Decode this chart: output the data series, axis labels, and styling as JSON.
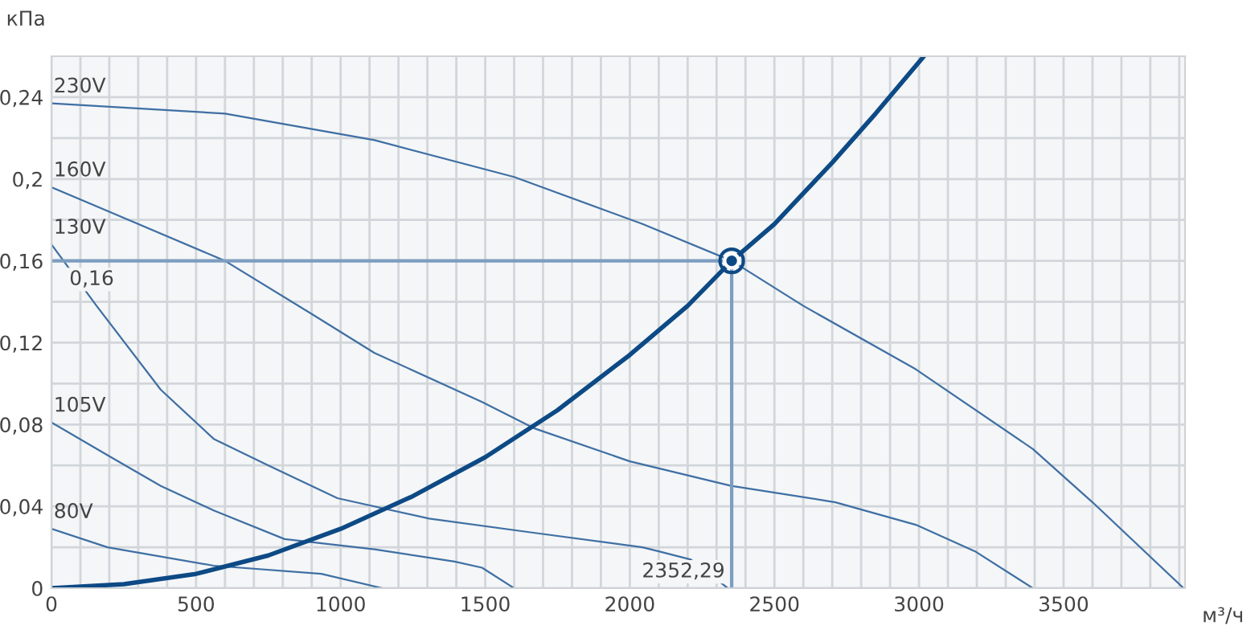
{
  "chart_data": {
    "type": "line",
    "xlabel": "м³/ч",
    "ylabel": "кПа",
    "xlim": [
      0,
      3920
    ],
    "ylim": [
      0,
      0.26
    ],
    "xticks": [
      0,
      {
        "value": 100,
        "label": null
      },
      {
        "value": 200,
        "label": null
      },
      {
        "value": 300,
        "label": null
      },
      {
        "value": 400,
        "label": null
      },
      500,
      {
        "value": 600,
        "label": null
      },
      {
        "value": 700,
        "label": null
      },
      {
        "value": 800,
        "label": null
      },
      {
        "value": 900,
        "label": null
      },
      1000,
      {
        "value": 1100,
        "label": null
      },
      {
        "value": 1200,
        "label": null
      },
      {
        "value": 1300,
        "label": null
      },
      {
        "value": 1400,
        "label": null
      },
      1500,
      {
        "value": 1600,
        "label": null
      },
      {
        "value": 1700,
        "label": null
      },
      {
        "value": 1800,
        "label": null
      },
      {
        "value": 1900,
        "label": null
      },
      2000,
      {
        "value": 2100,
        "label": null
      },
      {
        "value": 2200,
        "label": null
      },
      {
        "value": 2300,
        "label": null
      },
      {
        "value": 2400,
        "label": null
      },
      2500,
      {
        "value": 2600,
        "label": null
      },
      {
        "value": 2700,
        "label": null
      },
      {
        "value": 2800,
        "label": null
      },
      {
        "value": 2900,
        "label": null
      },
      3000,
      {
        "value": 3100,
        "label": null
      },
      {
        "value": 3200,
        "label": null
      },
      {
        "value": 3300,
        "label": null
      },
      {
        "value": 3400,
        "label": null
      },
      3500,
      {
        "value": 3600,
        "label": null
      },
      {
        "value": 3700,
        "label": null
      },
      {
        "value": 3800,
        "label": null
      },
      {
        "value": 3900,
        "label": null
      }
    ],
    "yticks": [
      0,
      {
        "value": 0.02,
        "label": null
      },
      {
        "value": 0.04,
        "label": "0,04"
      },
      {
        "value": 0.06,
        "label": null
      },
      {
        "value": 0.08,
        "label": "0,08"
      },
      {
        "value": 0.1,
        "label": null
      },
      {
        "value": 0.12,
        "label": "0,12"
      },
      {
        "value": 0.14,
        "label": null
      },
      {
        "value": 0.16,
        "label": "0,16"
      },
      {
        "value": 0.18,
        "label": null
      },
      {
        "value": 0.2,
        "label": "0,2"
      },
      {
        "value": 0.22,
        "label": null
      },
      {
        "value": 0.24,
        "label": "0,24"
      }
    ],
    "grid": true,
    "legend": false,
    "line_style": "solid",
    "series": [
      {
        "name": "230V",
        "color": "#3f6fa3",
        "x": [
          0,
          600,
          1117,
          1600,
          2044,
          2352.29,
          2600,
          2989,
          3394,
          3600,
          3915
        ],
        "values": [
          0.237,
          0.232,
          0.219,
          0.201,
          0.178,
          0.16,
          0.138,
          0.107,
          0.068,
          0.042,
          0
        ]
      },
      {
        "name": "160V",
        "color": "#3f6fa3",
        "x": [
          0,
          200,
          600,
          900,
          1117,
          1489,
          1672,
          2000,
          2350,
          2711,
          2989,
          3194,
          3394
        ],
        "values": [
          0.196,
          0.184,
          0.16,
          0.134,
          0.115,
          0.091,
          0.078,
          0.062,
          0.05,
          0.042,
          0.031,
          0.018,
          0
        ]
      },
      {
        "name": "130V",
        "color": "#3f6fa3",
        "x": [
          0,
          156,
          378,
          561,
          750,
          989,
          1306,
          1672,
          2044,
          2100,
          2211,
          2339
        ],
        "values": [
          0.168,
          0.138,
          0.097,
          0.073,
          0.06,
          0.044,
          0.034,
          0.027,
          0.02,
          0.018,
          0.014,
          0
        ]
      },
      {
        "name": "105V",
        "color": "#3f6fa3",
        "x": [
          0,
          194,
          378,
          561,
          806,
          1117,
          1394,
          1489,
          1600
        ],
        "values": [
          0.081,
          0.065,
          0.05,
          0.038,
          0.024,
          0.019,
          0.013,
          0.01,
          0
        ]
      },
      {
        "name": "80V",
        "color": "#3f6fa3",
        "x": [
          0,
          194,
          561,
          933,
          1144
        ],
        "values": [
          0.029,
          0.02,
          0.011,
          0.007,
          0
        ]
      },
      {
        "color": "#0d4a85",
        "x": [
          0,
          250,
          500,
          750,
          1000,
          1250,
          1500,
          1750,
          2000,
          2200,
          2352.29,
          2500,
          2700,
          2850,
          3017
        ],
        "values": [
          0,
          0.002,
          0.007,
          0.016,
          0.029,
          0.045,
          0.064,
          0.087,
          0.114,
          0.138,
          0.16,
          0.178,
          0.208,
          0.232,
          0.26
        ]
      },
      {
        "color": "#7d9dc0",
        "x": [
          0,
          2352.29,
          2352.29
        ],
        "values": [
          0.16,
          0.16,
          0
        ]
      },
      {
        "type": "scatter",
        "marker": "circle",
        "color": "#0d4a85",
        "x": [
          2352.29
        ],
        "values": [
          0.16
        ]
      }
    ],
    "annotations": [
      {
        "text": "0,16",
        "x": 0,
        "y": 0.16
      },
      {
        "text": "2352,29",
        "x": 2352.29,
        "y": 0
      }
    ]
  }
}
